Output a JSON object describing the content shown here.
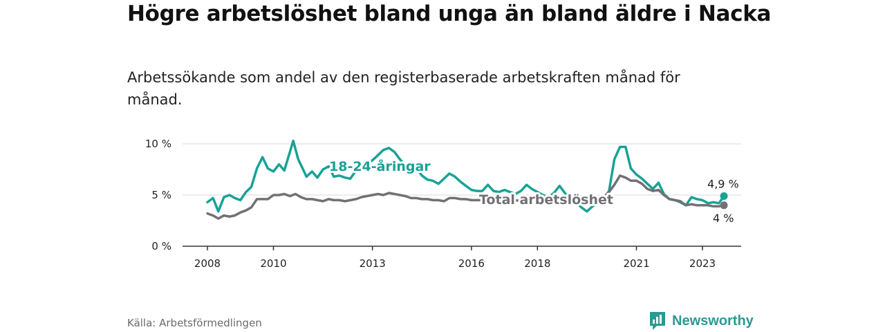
{
  "header": {
    "title": "Högre arbetslöshet bland unga än bland äldre i Nacka",
    "subtitle": "Arbetssökande som andel av den registerbaserade arbetskraften månad för månad."
  },
  "footer": {
    "source": "Källa: Arbetsförmedlingen",
    "brand": "Newsworthy"
  },
  "colors": {
    "youth": "#17a296",
    "total": "#727074",
    "axis": "#333333",
    "grid": "#d9d9d9",
    "brand": "#2a9a92"
  },
  "chart_data": {
    "type": "line",
    "title": "Högre arbetslöshet bland unga än bland äldre i Nacka",
    "subtitle": "Arbetssökande som andel av den registerbaserade arbetskraften månad för månad.",
    "ylim": [
      0,
      10
    ],
    "yticks": [
      0,
      5,
      10
    ],
    "ytick_labels": [
      "0 %",
      "5 %",
      "10 %"
    ],
    "xlim": [
      2008,
      2023.8
    ],
    "xticks": [
      2008,
      2010,
      2013,
      2016,
      2018,
      2021,
      2023
    ],
    "xtick_labels": [
      "2008",
      "2010",
      "2013",
      "2016",
      "2018",
      "2021",
      "2023"
    ],
    "grid": true,
    "series": [
      {
        "name": "18-24-åringar",
        "color": "#17a296",
        "end_label": "4,9 %",
        "points": [
          [
            2008.0,
            4.3
          ],
          [
            2008.17,
            4.7
          ],
          [
            2008.33,
            3.4
          ],
          [
            2008.5,
            4.8
          ],
          [
            2008.67,
            5.0
          ],
          [
            2008.83,
            4.7
          ],
          [
            2009.0,
            4.5
          ],
          [
            2009.17,
            5.3
          ],
          [
            2009.33,
            5.8
          ],
          [
            2009.5,
            7.6
          ],
          [
            2009.67,
            8.7
          ],
          [
            2009.83,
            7.6
          ],
          [
            2010.0,
            7.3
          ],
          [
            2010.17,
            8.0
          ],
          [
            2010.33,
            7.4
          ],
          [
            2010.5,
            9.2
          ],
          [
            2010.6,
            10.3
          ],
          [
            2010.75,
            8.5
          ],
          [
            2010.9,
            7.5
          ],
          [
            2011.0,
            6.8
          ],
          [
            2011.17,
            7.3
          ],
          [
            2011.33,
            6.7
          ],
          [
            2011.5,
            7.5
          ],
          [
            2011.67,
            7.8
          ],
          [
            2011.83,
            6.8
          ],
          [
            2012.0,
            6.9
          ],
          [
            2012.17,
            6.7
          ],
          [
            2012.33,
            6.6
          ],
          [
            2012.5,
            7.4
          ],
          [
            2012.67,
            7.5
          ],
          [
            2012.83,
            8.0
          ],
          [
            2013.0,
            8.4
          ],
          [
            2013.17,
            8.9
          ],
          [
            2013.33,
            9.4
          ],
          [
            2013.5,
            9.6
          ],
          [
            2013.67,
            9.2
          ],
          [
            2013.83,
            8.5
          ],
          [
            2014.0,
            7.9
          ],
          [
            2014.17,
            7.5
          ],
          [
            2014.33,
            7.6
          ],
          [
            2014.5,
            6.9
          ],
          [
            2014.67,
            6.5
          ],
          [
            2014.83,
            6.4
          ],
          [
            2015.0,
            6.1
          ],
          [
            2015.17,
            6.6
          ],
          [
            2015.33,
            7.1
          ],
          [
            2015.5,
            6.8
          ],
          [
            2015.67,
            6.3
          ],
          [
            2015.83,
            5.9
          ],
          [
            2016.0,
            5.5
          ],
          [
            2016.17,
            5.4
          ],
          [
            2016.33,
            5.4
          ],
          [
            2016.5,
            6.0
          ],
          [
            2016.67,
            5.4
          ],
          [
            2016.83,
            5.3
          ],
          [
            2017.0,
            5.5
          ],
          [
            2017.17,
            5.3
          ],
          [
            2017.33,
            5.1
          ],
          [
            2017.5,
            5.4
          ],
          [
            2017.67,
            6.0
          ],
          [
            2017.83,
            5.6
          ],
          [
            2018.0,
            5.3
          ],
          [
            2018.17,
            5.0
          ],
          [
            2018.33,
            4.8
          ],
          [
            2018.5,
            5.2
          ],
          [
            2018.67,
            5.9
          ],
          [
            2018.83,
            5.2
          ],
          [
            2019.0,
            4.7
          ],
          [
            2019.17,
            4.3
          ],
          [
            2019.33,
            3.8
          ],
          [
            2019.5,
            3.4
          ],
          [
            2019.67,
            3.9
          ],
          [
            2019.83,
            4.2
          ],
          [
            2020.0,
            4.6
          ],
          [
            2020.17,
            5.4
          ],
          [
            2020.33,
            8.5
          ],
          [
            2020.5,
            9.7
          ],
          [
            2020.67,
            9.7
          ],
          [
            2020.83,
            7.6
          ],
          [
            2021.0,
            7.0
          ],
          [
            2021.17,
            6.6
          ],
          [
            2021.33,
            6.1
          ],
          [
            2021.5,
            5.6
          ],
          [
            2021.67,
            6.2
          ],
          [
            2021.83,
            5.1
          ],
          [
            2022.0,
            4.6
          ],
          [
            2022.17,
            4.5
          ],
          [
            2022.33,
            4.3
          ],
          [
            2022.5,
            4.0
          ],
          [
            2022.67,
            4.8
          ],
          [
            2022.83,
            4.6
          ],
          [
            2023.0,
            4.5
          ],
          [
            2023.17,
            4.2
          ],
          [
            2023.33,
            4.3
          ],
          [
            2023.5,
            4.2
          ],
          [
            2023.65,
            4.9
          ]
        ]
      },
      {
        "name": "Total arbetslöshet",
        "color": "#727074",
        "end_label": "4 %",
        "points": [
          [
            2008.0,
            3.2
          ],
          [
            2008.17,
            3.0
          ],
          [
            2008.33,
            2.7
          ],
          [
            2008.5,
            3.0
          ],
          [
            2008.67,
            2.9
          ],
          [
            2008.83,
            3.0
          ],
          [
            2009.0,
            3.3
          ],
          [
            2009.17,
            3.5
          ],
          [
            2009.33,
            3.8
          ],
          [
            2009.5,
            4.6
          ],
          [
            2009.67,
            4.6
          ],
          [
            2009.83,
            4.6
          ],
          [
            2010.0,
            5.0
          ],
          [
            2010.17,
            5.0
          ],
          [
            2010.33,
            5.1
          ],
          [
            2010.5,
            4.9
          ],
          [
            2010.67,
            5.1
          ],
          [
            2010.83,
            4.8
          ],
          [
            2011.0,
            4.6
          ],
          [
            2011.17,
            4.6
          ],
          [
            2011.33,
            4.5
          ],
          [
            2011.5,
            4.4
          ],
          [
            2011.67,
            4.6
          ],
          [
            2011.83,
            4.5
          ],
          [
            2012.0,
            4.5
          ],
          [
            2012.17,
            4.4
          ],
          [
            2012.33,
            4.5
          ],
          [
            2012.5,
            4.6
          ],
          [
            2012.67,
            4.8
          ],
          [
            2012.83,
            4.9
          ],
          [
            2013.0,
            5.0
          ],
          [
            2013.17,
            5.1
          ],
          [
            2013.33,
            5.0
          ],
          [
            2013.5,
            5.2
          ],
          [
            2013.67,
            5.1
          ],
          [
            2013.83,
            5.0
          ],
          [
            2014.0,
            4.9
          ],
          [
            2014.17,
            4.7
          ],
          [
            2014.33,
            4.7
          ],
          [
            2014.5,
            4.6
          ],
          [
            2014.67,
            4.6
          ],
          [
            2014.83,
            4.5
          ],
          [
            2015.0,
            4.5
          ],
          [
            2015.17,
            4.4
          ],
          [
            2015.33,
            4.7
          ],
          [
            2015.5,
            4.7
          ],
          [
            2015.67,
            4.6
          ],
          [
            2015.83,
            4.6
          ],
          [
            2016.0,
            4.5
          ],
          [
            2016.17,
            4.5
          ],
          [
            2016.33,
            4.5
          ],
          [
            2016.5,
            4.5
          ],
          [
            2016.67,
            4.6
          ],
          [
            2016.83,
            4.6
          ],
          [
            2017.0,
            4.5
          ],
          [
            2017.17,
            4.5
          ],
          [
            2017.33,
            4.5
          ],
          [
            2017.5,
            4.4
          ],
          [
            2017.67,
            4.6
          ],
          [
            2017.83,
            4.6
          ],
          [
            2018.0,
            4.5
          ],
          [
            2018.17,
            4.4
          ],
          [
            2018.33,
            4.4
          ],
          [
            2018.5,
            4.4
          ],
          [
            2018.67,
            4.6
          ],
          [
            2018.83,
            4.6
          ],
          [
            2019.0,
            4.5
          ],
          [
            2019.17,
            4.5
          ],
          [
            2019.33,
            4.5
          ],
          [
            2019.5,
            4.4
          ],
          [
            2019.67,
            4.5
          ],
          [
            2019.83,
            4.6
          ],
          [
            2020.0,
            4.8
          ],
          [
            2020.17,
            5.3
          ],
          [
            2020.33,
            6.0
          ],
          [
            2020.5,
            6.9
          ],
          [
            2020.67,
            6.7
          ],
          [
            2020.83,
            6.4
          ],
          [
            2021.0,
            6.4
          ],
          [
            2021.17,
            6.1
          ],
          [
            2021.33,
            5.6
          ],
          [
            2021.5,
            5.4
          ],
          [
            2021.67,
            5.5
          ],
          [
            2021.83,
            5.0
          ],
          [
            2022.0,
            4.6
          ],
          [
            2022.17,
            4.5
          ],
          [
            2022.33,
            4.4
          ],
          [
            2022.5,
            4.0
          ],
          [
            2022.67,
            4.1
          ],
          [
            2022.83,
            4.0
          ],
          [
            2023.0,
            4.0
          ],
          [
            2023.17,
            4.0
          ],
          [
            2023.33,
            3.9
          ],
          [
            2023.5,
            3.9
          ],
          [
            2023.65,
            4.0
          ]
        ]
      }
    ]
  }
}
